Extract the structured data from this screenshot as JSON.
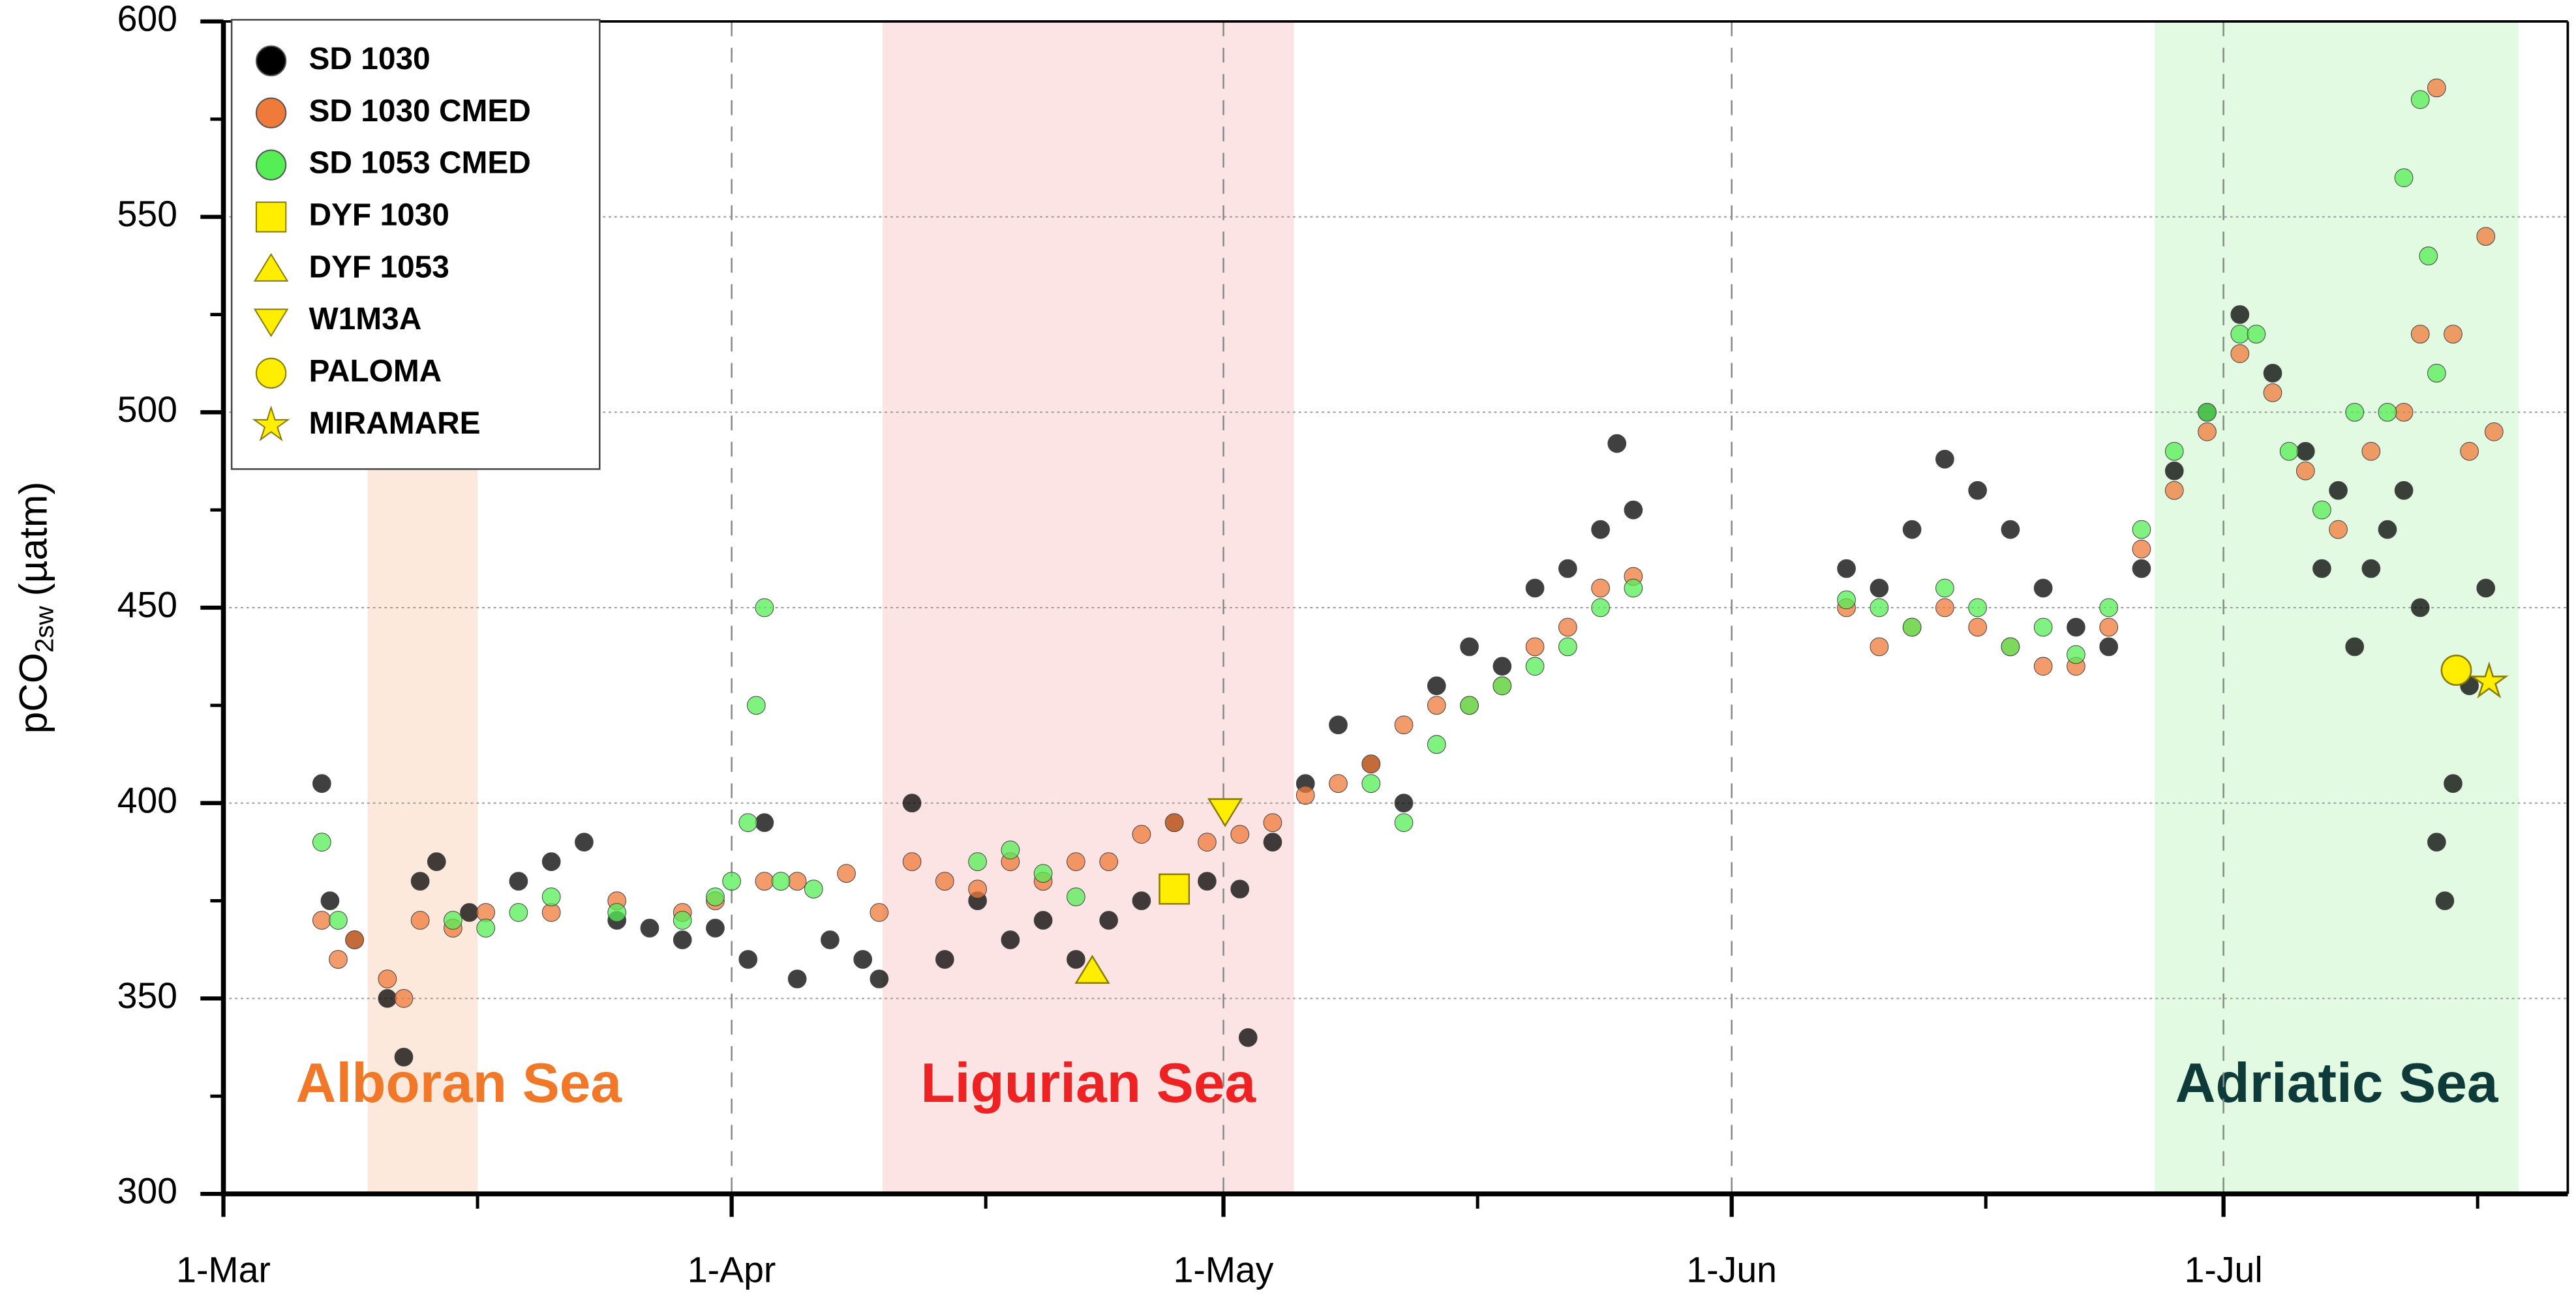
{
  "chart_data": {
    "type": "scatter",
    "ylabel": {
      "main": "pCO",
      "sub": "2sw",
      "tail": "(µatm)"
    },
    "xlim": [
      0,
      143
    ],
    "ylim": [
      300,
      600
    ],
    "xticks": [
      {
        "value": 0,
        "label": "1-Mar"
      },
      {
        "value": 31,
        "label": "1-Apr"
      },
      {
        "value": 61,
        "label": "1-May"
      },
      {
        "value": 92,
        "label": "1-Jun"
      },
      {
        "value": 122,
        "label": "1-Jul"
      }
    ],
    "xminorticks": [
      15.5,
      46.5,
      76.5,
      107.5,
      137.5
    ],
    "yticks": [
      300,
      350,
      400,
      450,
      500,
      550,
      600
    ],
    "yminorticks": [
      325,
      375,
      425,
      475,
      525,
      575
    ],
    "grid": true,
    "legend": "upper left",
    "regions": [
      {
        "label": "Alboran Sea",
        "start": 8.8,
        "end": 15.5,
        "fill": "#fde9dc",
        "text_color": "#f07828"
      },
      {
        "label": "Ligurian Sea",
        "start": 40.2,
        "end": 65.3,
        "fill": "#fce4e4",
        "text_color": "#ee2222"
      },
      {
        "label": "Adriatic Sea",
        "start": 117.8,
        "end": 140,
        "fill": "#e2f9e2",
        "text_color": "#0e3a3a"
      }
    ],
    "series": [
      {
        "name": "SD 1030",
        "color": "#000000",
        "marker": "circle",
        "x": [
          6,
          6.5,
          8,
          10,
          11,
          12,
          13,
          15,
          18,
          20,
          22,
          24,
          26,
          28,
          30,
          32,
          33,
          35,
          37,
          39,
          40,
          42,
          44,
          46,
          48,
          50,
          52,
          54,
          56,
          58,
          60,
          62,
          62.5,
          64,
          66,
          68,
          70,
          72,
          74,
          76,
          78,
          80,
          82,
          84,
          85,
          86,
          99,
          101,
          103,
          105,
          107,
          109,
          111,
          113,
          115,
          117,
          119,
          121,
          123,
          125,
          127,
          128,
          129,
          130,
          131,
          132,
          133,
          134,
          135,
          135.5,
          136,
          137,
          138
        ],
        "values": [
          405,
          375,
          365,
          350,
          335,
          380,
          385,
          372,
          380,
          385,
          390,
          370,
          368,
          365,
          368,
          360,
          395,
          355,
          365,
          360,
          355,
          400,
          360,
          375,
          365,
          370,
          360,
          370,
          375,
          395,
          380,
          378,
          340,
          390,
          405,
          420,
          410,
          400,
          430,
          440,
          435,
          455,
          460,
          470,
          492,
          475,
          460,
          455,
          470,
          488,
          480,
          470,
          455,
          445,
          440,
          460,
          485,
          500,
          525,
          510,
          490,
          460,
          480,
          440,
          460,
          470,
          480,
          450,
          390,
          375,
          405,
          430,
          455
        ]
      },
      {
        "name": "SD 1030 CMED",
        "color": "#f07a3a",
        "marker": "circle",
        "x": [
          6,
          7,
          8,
          10,
          11,
          12,
          14,
          16,
          20,
          24,
          28,
          30,
          33,
          35,
          38,
          40,
          42,
          44,
          46,
          48,
          50,
          52,
          54,
          56,
          58,
          60,
          62,
          64,
          66,
          68,
          70,
          72,
          74,
          76,
          78,
          80,
          82,
          84,
          86,
          99,
          101,
          103,
          105,
          107,
          109,
          111,
          113,
          115,
          117,
          119,
          121,
          123,
          125,
          127,
          129,
          131,
          133,
          134,
          135,
          136,
          137,
          138,
          138.5
        ],
        "values": [
          370,
          360,
          365,
          355,
          350,
          370,
          368,
          372,
          372,
          375,
          372,
          375,
          380,
          380,
          382,
          372,
          385,
          380,
          378,
          385,
          380,
          385,
          385,
          392,
          395,
          390,
          392,
          395,
          402,
          405,
          410,
          420,
          425,
          425,
          430,
          440,
          445,
          455,
          458,
          450,
          440,
          445,
          450,
          445,
          440,
          435,
          435,
          445,
          465,
          480,
          495,
          515,
          505,
          485,
          470,
          490,
          500,
          520,
          583,
          520,
          490,
          545,
          495
        ]
      },
      {
        "name": "SD 1053 CMED",
        "color": "#55ee55",
        "marker": "circle",
        "x": [
          6,
          7,
          14,
          16,
          18,
          20,
          24,
          28,
          30,
          31,
          32,
          32.5,
          33,
          34,
          36,
          46,
          48,
          50,
          52,
          70,
          72,
          74,
          76,
          78,
          80,
          82,
          84,
          86,
          99,
          101,
          103,
          105,
          107,
          109,
          111,
          113,
          115,
          117,
          119,
          121,
          123,
          124,
          126,
          128,
          130,
          132,
          133,
          134,
          134.5,
          135
        ],
        "values": [
          390,
          370,
          370,
          368,
          372,
          376,
          372,
          370,
          376,
          380,
          395,
          425,
          450,
          380,
          378,
          385,
          388,
          382,
          376,
          405,
          395,
          415,
          425,
          430,
          435,
          440,
          450,
          455,
          452,
          450,
          445,
          455,
          450,
          440,
          445,
          438,
          450,
          470,
          490,
          500,
          520,
          520,
          490,
          475,
          500,
          500,
          560,
          580,
          540,
          510
        ]
      },
      {
        "name": "DYF 1030",
        "color": "#ffee00",
        "marker": "square",
        "x": [
          58
        ],
        "values": [
          378
        ]
      },
      {
        "name": "DYF 1053",
        "color": "#ffee00",
        "marker": "triangle",
        "x": [
          53
        ],
        "values": [
          357
        ]
      },
      {
        "name": "W1M3A",
        "color": "#ffee00",
        "marker": "triangle-down",
        "x": [
          61.1
        ],
        "values": [
          398
        ]
      },
      {
        "name": "PALOMA",
        "color": "#ffee00",
        "marker": "circle",
        "x": [
          136.2
        ],
        "values": [
          434
        ]
      },
      {
        "name": "MIRAMARE",
        "color": "#ffee00",
        "marker": "star",
        "x": [
          138.2
        ],
        "values": [
          431
        ]
      }
    ]
  }
}
